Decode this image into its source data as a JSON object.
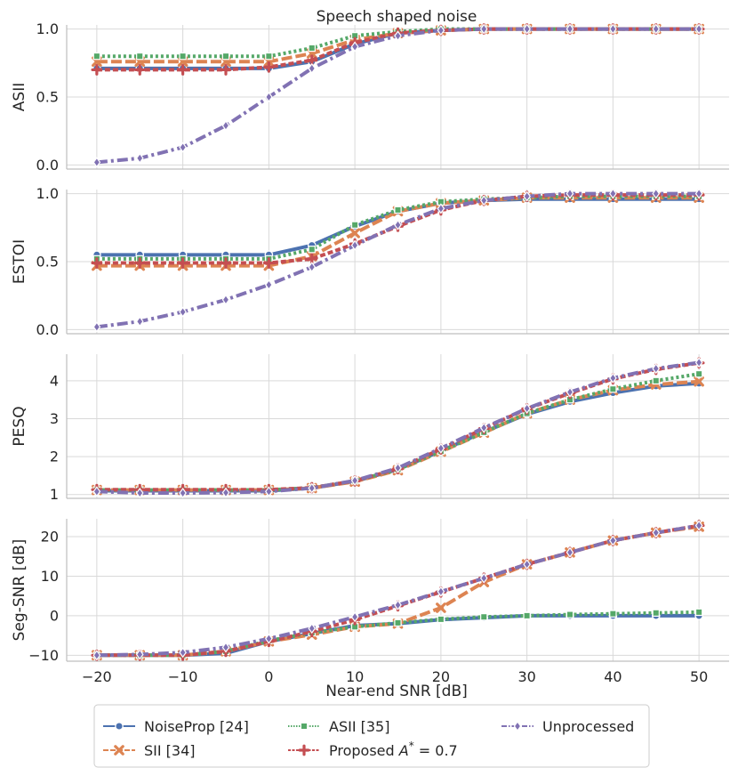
{
  "chart_data": {
    "type": "line",
    "title": "Speech shaped noise",
    "xlabel": "Near-end SNR [dB]",
    "x": [
      -20,
      -15,
      -10,
      -5,
      0,
      5,
      10,
      15,
      20,
      25,
      30,
      35,
      40,
      45,
      50
    ],
    "x_ticks": [
      -20,
      -10,
      0,
      10,
      20,
      30,
      40,
      50
    ],
    "x_tick_labels": [
      "−20",
      "−10",
      "0",
      "10",
      "20",
      "30",
      "40",
      "50"
    ],
    "grid": true,
    "legend_position": "bottom",
    "series_styles": [
      {
        "name": "NoiseProp [24]",
        "color": "#4c72b0",
        "dash": "",
        "marker": "circle"
      },
      {
        "name": "SII [34]",
        "color": "#dd8452",
        "dash": "12,4",
        "marker": "x"
      },
      {
        "name": "ASII [35]",
        "color": "#55a868",
        "dash": "3,3",
        "marker": "square"
      },
      {
        "name": "Proposed",
        "color": "#c44e52",
        "dash": "6,3",
        "marker": "plus"
      },
      {
        "name": "Unprocessed",
        "color": "#8172b3",
        "dash": "12,4,3,4",
        "marker": "diamond"
      }
    ],
    "legend": {
      "entries": [
        "NoiseProp [24]",
        "SII [34]",
        "ASII [35]",
        "Proposed",
        "Unprocessed"
      ],
      "proposed_suffix_text": "= 0.7",
      "proposed_symbol": "A",
      "proposed_superscript": "*"
    },
    "panels": [
      {
        "ylabel": "ASII",
        "ylim": [
          -0.03,
          1.03
        ],
        "y_ticks": [
          0.0,
          0.5,
          1.0
        ],
        "y_tick_labels": [
          "0.0",
          "0.5",
          "1.0"
        ],
        "series": [
          {
            "name": "NoiseProp [24]",
            "values": [
              0.71,
              0.71,
              0.71,
              0.71,
              0.71,
              0.76,
              0.89,
              0.97,
              0.99,
              1.0,
              1.0,
              1.0,
              1.0,
              1.0,
              1.0
            ]
          },
          {
            "name": "SII [34]",
            "values": [
              0.76,
              0.76,
              0.76,
              0.76,
              0.76,
              0.82,
              0.92,
              0.97,
              0.99,
              1.0,
              1.0,
              1.0,
              1.0,
              1.0,
              1.0
            ]
          },
          {
            "name": "ASII [35]",
            "values": [
              0.8,
              0.8,
              0.8,
              0.8,
              0.8,
              0.86,
              0.95,
              0.98,
              1.0,
              1.0,
              1.0,
              1.0,
              1.0,
              1.0,
              1.0
            ]
          },
          {
            "name": "Proposed",
            "values": [
              0.7,
              0.7,
              0.7,
              0.7,
              0.72,
              0.77,
              0.9,
              0.97,
              0.99,
              1.0,
              1.0,
              1.0,
              1.0,
              1.0,
              1.0
            ]
          },
          {
            "name": "Unprocessed",
            "values": [
              0.02,
              0.05,
              0.13,
              0.29,
              0.5,
              0.71,
              0.87,
              0.95,
              0.99,
              1.0,
              1.0,
              1.0,
              1.0,
              1.0,
              1.0
            ]
          }
        ]
      },
      {
        "ylabel": "ESTOI",
        "ylim": [
          -0.03,
          1.03
        ],
        "y_ticks": [
          0.0,
          0.5,
          1.0
        ],
        "y_tick_labels": [
          "0.0",
          "0.5",
          "1.0"
        ],
        "series": [
          {
            "name": "NoiseProp [24]",
            "values": [
              0.55,
              0.55,
              0.55,
              0.55,
              0.55,
              0.62,
              0.76,
              0.87,
              0.93,
              0.95,
              0.96,
              0.96,
              0.96,
              0.96,
              0.96
            ]
          },
          {
            "name": "SII [34]",
            "values": [
              0.47,
              0.47,
              0.47,
              0.47,
              0.47,
              0.54,
              0.71,
              0.87,
              0.93,
              0.95,
              0.97,
              0.97,
              0.97,
              0.97,
              0.97
            ]
          },
          {
            "name": "ASII [35]",
            "values": [
              0.52,
              0.52,
              0.52,
              0.52,
              0.52,
              0.59,
              0.77,
              0.88,
              0.94,
              0.96,
              0.97,
              0.98,
              0.98,
              0.98,
              0.98
            ]
          },
          {
            "name": "Proposed",
            "values": [
              0.49,
              0.49,
              0.49,
              0.49,
              0.49,
              0.52,
              0.63,
              0.76,
              0.88,
              0.95,
              0.98,
              0.99,
              0.99,
              0.99,
              0.99
            ]
          },
          {
            "name": "Unprocessed",
            "values": [
              0.02,
              0.06,
              0.13,
              0.22,
              0.33,
              0.46,
              0.62,
              0.77,
              0.89,
              0.95,
              0.98,
              1.0,
              1.0,
              1.0,
              1.0
            ]
          }
        ]
      },
      {
        "ylabel": "PESQ",
        "ylim": [
          0.9,
          4.7
        ],
        "y_ticks": [
          1,
          2,
          3,
          4
        ],
        "y_tick_labels": [
          "1",
          "2",
          "3",
          "4"
        ],
        "series": [
          {
            "name": "NoiseProp [24]",
            "values": [
              1.1,
              1.1,
              1.1,
              1.1,
              1.1,
              1.17,
              1.35,
              1.66,
              2.15,
              2.65,
              3.12,
              3.45,
              3.68,
              3.86,
              3.93
            ]
          },
          {
            "name": "SII [34]",
            "values": [
              1.12,
              1.12,
              1.12,
              1.12,
              1.12,
              1.17,
              1.34,
              1.64,
              2.13,
              2.63,
              3.14,
              3.5,
              3.75,
              3.9,
              3.98
            ]
          },
          {
            "name": "ASII [35]",
            "values": [
              1.12,
              1.12,
              1.12,
              1.12,
              1.12,
              1.18,
              1.36,
              1.66,
              2.14,
              2.64,
              3.14,
              3.5,
              3.78,
              4.0,
              4.18
            ]
          },
          {
            "name": "Proposed",
            "values": [
              1.13,
              1.13,
              1.13,
              1.13,
              1.13,
              1.18,
              1.36,
              1.68,
              2.2,
              2.74,
              3.26,
              3.67,
              4.05,
              4.3,
              4.47
            ]
          },
          {
            "name": "Unprocessed",
            "values": [
              1.08,
              1.04,
              1.04,
              1.05,
              1.08,
              1.17,
              1.37,
              1.7,
              2.22,
              2.76,
              3.27,
              3.7,
              4.07,
              4.32,
              4.48
            ]
          }
        ]
      },
      {
        "ylabel": "Seg-SNR [dB]",
        "ylim": [
          -11.5,
          24.5
        ],
        "y_ticks": [
          -10,
          0,
          10,
          20
        ],
        "y_tick_labels": [
          "−10",
          "0",
          "10",
          "20"
        ],
        "series": [
          {
            "name": "NoiseProp [24]",
            "values": [
              -10.0,
              -10.0,
              -10.0,
              -9.5,
              -6.5,
              -4.5,
              -2.5,
              -2.0,
              -1.0,
              -0.5,
              0.0,
              0.0,
              0.0,
              0.0,
              0.0
            ]
          },
          {
            "name": "SII [34]",
            "values": [
              -10.0,
              -10.0,
              -10.0,
              -9.0,
              -6.5,
              -4.8,
              -2.8,
              -2.0,
              2.0,
              8.5,
              13.0,
              16.0,
              19.0,
              21.0,
              22.5
            ]
          },
          {
            "name": "ASII [35]",
            "values": [
              -10.0,
              -10.0,
              -10.0,
              -9.0,
              -6.3,
              -4.3,
              -2.8,
              -1.8,
              -0.9,
              -0.3,
              0.0,
              0.3,
              0.5,
              0.7,
              0.9
            ]
          },
          {
            "name": "Proposed",
            "values": [
              -10.0,
              -10.0,
              -10.0,
              -9.0,
              -6.5,
              -4.0,
              -1.0,
              2.5,
              6.0,
              9.5,
              13.0,
              16.0,
              19.0,
              21.0,
              22.8
            ]
          },
          {
            "name": "Unprocessed",
            "values": [
              -10.0,
              -9.8,
              -9.3,
              -8.0,
              -5.8,
              -3.2,
              -0.3,
              2.7,
              6.1,
              9.5,
              13.0,
              16.0,
              19.0,
              21.0,
              22.8
            ]
          }
        ]
      }
    ]
  }
}
